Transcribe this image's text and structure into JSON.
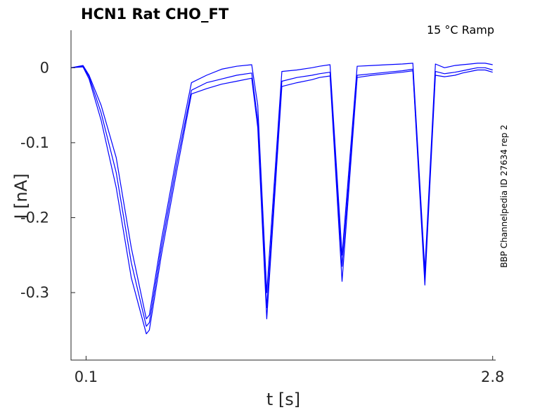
{
  "chart_data": {
    "type": "line",
    "title": "HCN1  Rat  CHO_FT",
    "annotation": "15 °C  Ramp",
    "side_label": "BBP Channelpedia ID 27634 rep 2",
    "xlabel": "t [s]",
    "ylabel": "I [nA]",
    "xticks": [
      {
        "value": 0.1,
        "label": "0.1"
      },
      {
        "value": 2.8,
        "label": "2.8"
      }
    ],
    "yticks": [
      {
        "value": 0,
        "label": "0"
      },
      {
        "value": -0.1,
        "label": "-0.1"
      },
      {
        "value": -0.2,
        "label": "-0.2"
      },
      {
        "value": -0.3,
        "label": "-0.3"
      }
    ],
    "xlim": [
      0.0,
      2.82
    ],
    "ylim": [
      -0.39,
      0.05
    ],
    "grid": false,
    "color": "#0000ff",
    "series": [
      {
        "x": [
          0.0,
          0.08,
          0.12,
          0.2,
          0.3,
          0.4,
          0.5,
          0.52,
          0.6,
          0.7,
          0.8,
          0.9,
          1.0,
          1.1,
          1.2,
          1.24,
          1.3,
          1.4,
          1.5,
          1.6,
          1.65,
          1.72,
          1.8,
          1.9,
          2.0,
          2.1,
          2.2,
          2.27,
          2.35,
          2.42,
          2.48,
          2.55,
          2.6,
          2.65,
          2.7,
          2.75,
          2.8
        ],
        "y": [
          0.0,
          0.003,
          -0.01,
          -0.05,
          -0.12,
          -0.24,
          -0.335,
          -0.33,
          -0.23,
          -0.12,
          -0.02,
          -0.01,
          -0.002,
          0.002,
          0.004,
          -0.05,
          -0.3,
          -0.005,
          -0.003,
          0.0,
          0.002,
          0.004,
          -0.25,
          0.002,
          0.003,
          0.004,
          0.005,
          0.006,
          -0.27,
          0.005,
          0.0,
          0.003,
          0.004,
          0.005,
          0.006,
          0.006,
          0.004
        ]
      },
      {
        "x": [
          0.0,
          0.08,
          0.12,
          0.2,
          0.3,
          0.4,
          0.5,
          0.52,
          0.6,
          0.7,
          0.8,
          0.9,
          1.0,
          1.1,
          1.2,
          1.24,
          1.3,
          1.4,
          1.5,
          1.6,
          1.65,
          1.72,
          1.8,
          1.9,
          2.0,
          2.1,
          2.2,
          2.27,
          2.35,
          2.42,
          2.48,
          2.55,
          2.6,
          2.65,
          2.7,
          2.75,
          2.8
        ],
        "y": [
          0.0,
          0.002,
          -0.012,
          -0.06,
          -0.14,
          -0.26,
          -0.345,
          -0.34,
          -0.24,
          -0.13,
          -0.03,
          -0.02,
          -0.015,
          -0.01,
          -0.007,
          -0.07,
          -0.32,
          -0.018,
          -0.013,
          -0.01,
          -0.008,
          -0.006,
          -0.265,
          -0.01,
          -0.008,
          -0.006,
          -0.004,
          -0.002,
          -0.28,
          -0.005,
          -0.008,
          -0.006,
          -0.004,
          -0.002,
          0.0,
          0.0,
          -0.003
        ]
      },
      {
        "x": [
          0.0,
          0.08,
          0.12,
          0.2,
          0.3,
          0.4,
          0.5,
          0.52,
          0.6,
          0.7,
          0.8,
          0.9,
          1.0,
          1.1,
          1.2,
          1.24,
          1.3,
          1.4,
          1.5,
          1.6,
          1.65,
          1.72,
          1.8,
          1.9,
          2.0,
          2.1,
          2.2,
          2.27,
          2.35,
          2.42,
          2.48,
          2.55,
          2.6,
          2.65,
          2.7,
          2.75,
          2.8
        ],
        "y": [
          0.0,
          0.001,
          -0.015,
          -0.07,
          -0.16,
          -0.28,
          -0.355,
          -0.35,
          -0.25,
          -0.14,
          -0.035,
          -0.028,
          -0.022,
          -0.018,
          -0.014,
          -0.08,
          -0.335,
          -0.025,
          -0.02,
          -0.016,
          -0.013,
          -0.011,
          -0.285,
          -0.013,
          -0.01,
          -0.008,
          -0.006,
          -0.004,
          -0.29,
          -0.01,
          -0.012,
          -0.01,
          -0.007,
          -0.005,
          -0.003,
          -0.003,
          -0.006
        ]
      }
    ]
  }
}
